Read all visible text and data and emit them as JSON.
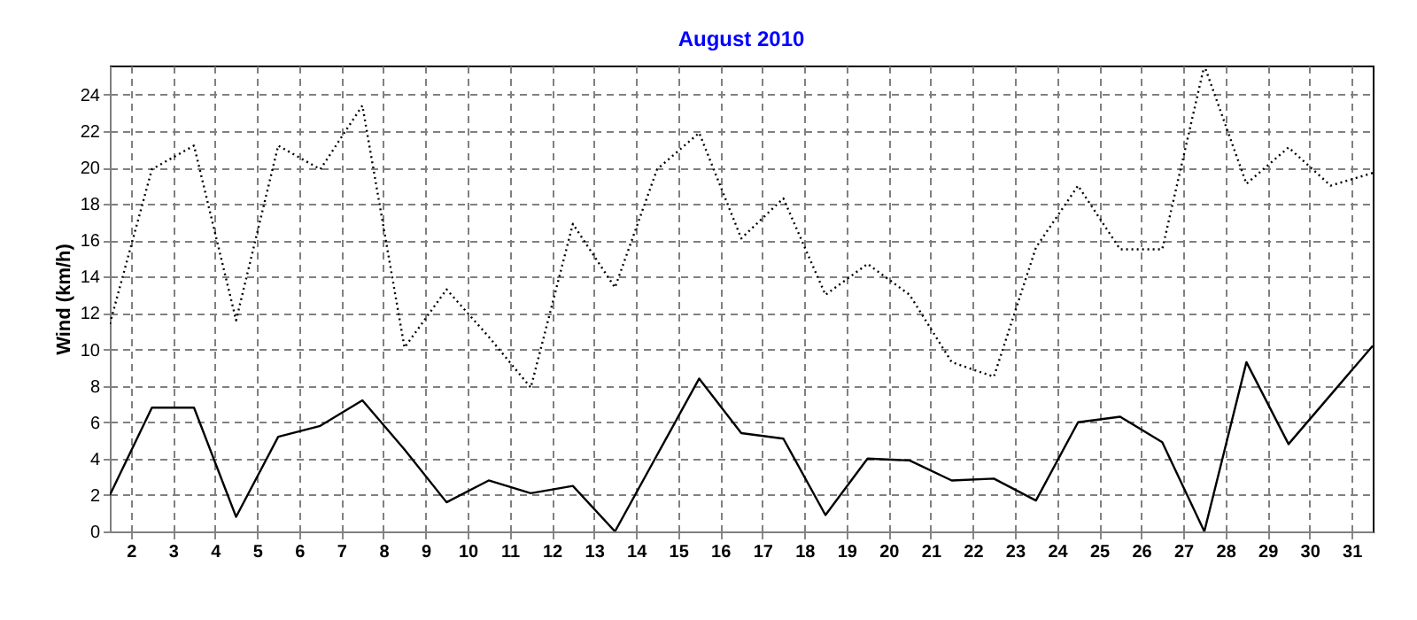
{
  "chart_data": {
    "type": "line",
    "title": "August 2010",
    "ylabel": "Wind  (km/h)",
    "x": [
      1.5,
      2.5,
      3.5,
      4.5,
      5.5,
      6.5,
      7.5,
      8.5,
      9.5,
      10.5,
      11.5,
      12.5,
      13.5,
      14.5,
      15.5,
      16.5,
      17.5,
      18.5,
      19.5,
      20.5,
      21.5,
      22.5,
      23.5,
      24.5,
      25.5,
      26.5,
      27.5,
      28.5,
      29.5,
      30.5,
      31.5
    ],
    "series": [
      {
        "color": "#000000",
        "line_style": "dotted",
        "values": [
          11.4,
          19.9,
          21.2,
          11.6,
          21.2,
          19.9,
          23.4,
          10.1,
          13.3,
          10.7,
          7.9,
          16.9,
          13.4,
          19.9,
          21.9,
          16.1,
          18.3,
          13.0,
          14.7,
          13.0,
          9.3,
          8.5,
          15.6,
          19.0,
          15.5,
          15.5,
          25.6,
          19.1,
          21.1,
          19.0,
          19.7
        ]
      },
      {
        "color": "#000000",
        "line_style": "solid",
        "values": [
          2.0,
          6.8,
          6.8,
          0.8,
          5.2,
          5.8,
          7.2,
          4.5,
          1.6,
          2.8,
          2.1,
          2.5,
          0,
          4.2,
          8.4,
          5.4,
          5.1,
          0.9,
          4.0,
          3.9,
          2.8,
          2.9,
          1.7,
          6.0,
          6.3,
          4.9,
          0,
          9.3,
          4.8,
          7.5,
          10.2
        ]
      }
    ],
    "xlim": [
      1.5,
      31.5
    ],
    "xticks": [
      2,
      3,
      4,
      5,
      6,
      7,
      8,
      9,
      10,
      11,
      12,
      13,
      14,
      15,
      16,
      17,
      18,
      19,
      20,
      21,
      22,
      23,
      24,
      25,
      26,
      27,
      28,
      29,
      30,
      31
    ],
    "ylim": [
      0,
      25.6
    ],
    "yticks": [
      0,
      2,
      4,
      6,
      8,
      10,
      12,
      14,
      16,
      18,
      20,
      22,
      24
    ],
    "grid": true,
    "marker": "none"
  }
}
